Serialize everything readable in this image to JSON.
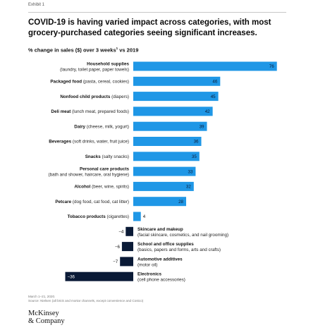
{
  "header": {
    "exhibit": "Exhibit 1",
    "title": "COVID-19 is having varied impact across categories, with most grocery-purchased categories seeing significant increases.",
    "subtitle": "% change in sales ($) over 3 weeks",
    "subtitle_note": "1",
    "subtitle_tail": " vs 2019"
  },
  "colors": {
    "positive": "#1f97e6",
    "negative": "#0a1a36"
  },
  "chart_data": {
    "type": "bar",
    "orientation": "horizontal",
    "title": "",
    "xlabel": "",
    "ylabel": "",
    "xlim": [
      -36,
      76
    ],
    "grid": false,
    "legend": "none",
    "series": [
      {
        "values": [
          76,
          46,
          45,
          42,
          39,
          36,
          35,
          33,
          32,
          28,
          4,
          -4,
          -6,
          -7,
          -36
        ]
      }
    ],
    "categories": [
      "Household supplies (laundry, toilet paper, paper towels)",
      "Packaged food (pasta, cereal, cookies)",
      "Nonfood child products (diapers)",
      "Deli meat (lunch meat, prepared foods)",
      "Dairy (cheese, milk, yogurt)",
      "Beverages (soft drinks, water, fruit juice)",
      "Snacks (salty snacks)",
      "Personal care products (bath and shower, haircare, oral hygiene)",
      "Alcohol (beer, wine, spirits)",
      "Petcare (dog food, cat food, cat litter)",
      "Tobacco products (cigarettes)",
      "Skincare and makeup (facial skincare, cosmetics, and nail grooming)",
      "School and office supplies (basics, papers and forms, arts and crafts)",
      "Automotive additives (motor oil)",
      "Electronics (cell phone accessories)"
    ],
    "rows": [
      {
        "name": "Household supplies",
        "detail": "(laundry, toilet paper, paper towels)",
        "value": 76,
        "label": "76"
      },
      {
        "name": "Packaged food",
        "detail": "(pasta, cereal, cookies)",
        "value": 46,
        "label": "46"
      },
      {
        "name": "Nonfood child products",
        "detail": "(diapers)",
        "value": 45,
        "label": "45"
      },
      {
        "name": "Deli meat",
        "detail": "(lunch meat, prepared foods)",
        "value": 42,
        "label": "42"
      },
      {
        "name": "Dairy",
        "detail": "(cheese, milk, yogurt)",
        "value": 39,
        "label": "39"
      },
      {
        "name": "Beverages",
        "detail": "(soft drinks, water, fruit juice)",
        "value": 36,
        "label": "36"
      },
      {
        "name": "Snacks",
        "detail": "(salty snacks)",
        "value": 35,
        "label": "35"
      },
      {
        "name": "Personal care products",
        "detail": "(bath and shower, haircare, oral hygiene)",
        "value": 33,
        "label": "33"
      },
      {
        "name": "Alcohol",
        "detail": "(beer, wine, spirits)",
        "value": 32,
        "label": "32"
      },
      {
        "name": "Petcare",
        "detail": "(dog food, cat food, cat litter)",
        "value": 28,
        "label": "28"
      },
      {
        "name": "Tobacco products",
        "detail": "(cigarettes)",
        "value": 4,
        "label": "4"
      },
      {
        "name": "Skincare and makeup",
        "detail": "(facial skincare, cosmetics, and nail grooming)",
        "value": -4,
        "label": "−4"
      },
      {
        "name": "School and office supplies",
        "detail": "(basics, papers and forms, arts and crafts)",
        "value": -6,
        "label": "−6"
      },
      {
        "name": "Automotive additives",
        "detail": "(motor oil)",
        "value": -7,
        "label": "−7"
      },
      {
        "name": "Electronics",
        "detail": "(cell phone accessories)",
        "value": -36,
        "label": "−36"
      }
    ]
  },
  "footer": {
    "note1": "March 1–21, 2020.",
    "source": "Source: Nielsen (all brick and mortar channels, except convenience and Costco)",
    "logo_line1": "McKinsey",
    "logo_line2": "& Company"
  }
}
